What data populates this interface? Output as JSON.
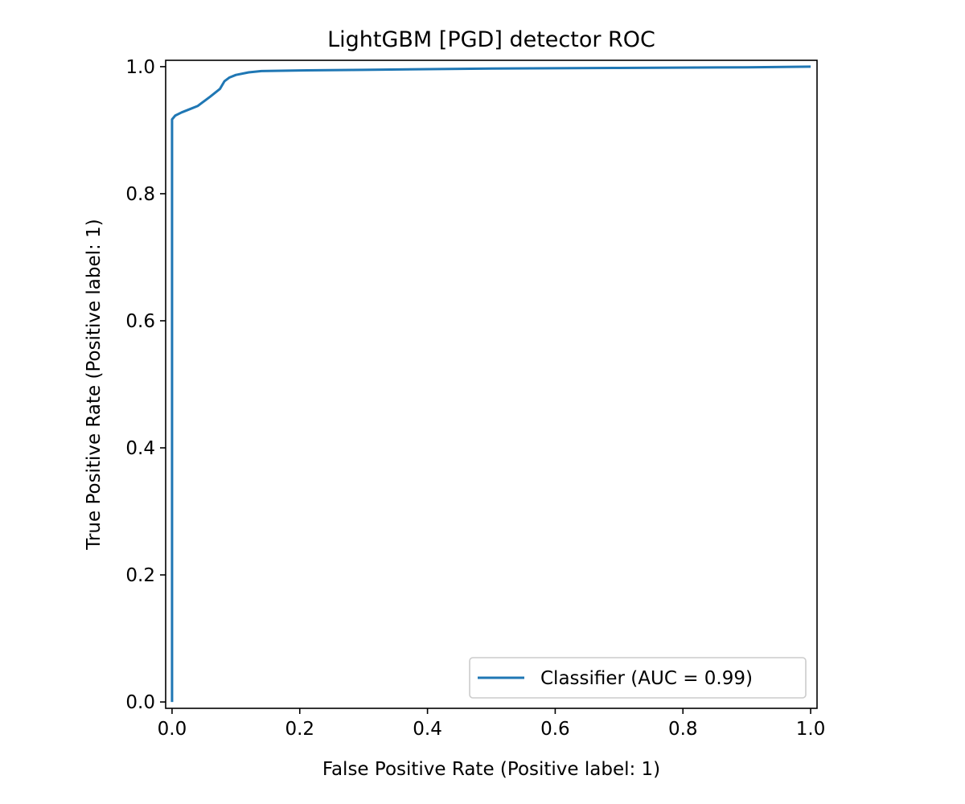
{
  "chart_data": {
    "type": "line",
    "title": "LightGBM [PGD] detector ROC",
    "xlabel": "False Positive Rate (Positive label: 1)",
    "ylabel": "True Positive Rate (Positive label: 1)",
    "xlim": [
      -0.01,
      1.01
    ],
    "ylim": [
      -0.01,
      1.01
    ],
    "xticks": [
      0.0,
      0.2,
      0.4,
      0.6,
      0.8,
      1.0
    ],
    "xtick_labels": [
      "0.0",
      "0.2",
      "0.4",
      "0.6",
      "0.8",
      "1.0"
    ],
    "yticks": [
      0.0,
      0.2,
      0.4,
      0.6,
      0.8,
      1.0
    ],
    "ytick_labels": [
      "0.0",
      "0.2",
      "0.4",
      "0.6",
      "0.8",
      "1.0"
    ],
    "grid": false,
    "legend_position": "lower-right",
    "series": [
      {
        "name": "Classifier (AUC = 0.99)",
        "color": "#1f77b4",
        "x": [
          0.0,
          0.0,
          0.005,
          0.015,
          0.03,
          0.04,
          0.06,
          0.075,
          0.082,
          0.09,
          0.1,
          0.12,
          0.14,
          0.2,
          0.3,
          0.5,
          0.7,
          0.9,
          1.0
        ],
        "y": [
          0.0,
          0.917,
          0.923,
          0.928,
          0.934,
          0.938,
          0.953,
          0.965,
          0.977,
          0.983,
          0.987,
          0.991,
          0.993,
          0.994,
          0.995,
          0.997,
          0.998,
          0.999,
          1.0
        ]
      }
    ]
  }
}
